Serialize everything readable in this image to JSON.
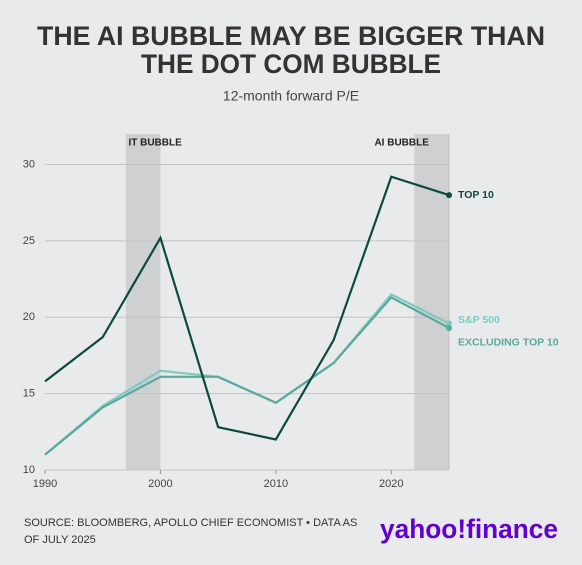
{
  "chart_data": {
    "type": "line",
    "title_lines": [
      "THE AI BUBBLE MAY BE BIGGER THAN",
      "THE DOT COM BUBBLE"
    ],
    "subtitle": "12-month forward P/E",
    "x": [
      1990,
      1995,
      2000,
      2005,
      2010,
      2015,
      2020,
      2025
    ],
    "series": [
      {
        "name": "TOP 10",
        "color": "#0d4a3e",
        "values": [
          15.8,
          18.7,
          25.2,
          12.8,
          12.0,
          18.5,
          29.2,
          28.0
        ]
      },
      {
        "name": "S&P 500",
        "color": "#80cbbf",
        "values": [
          11.0,
          14.2,
          16.5,
          16.1,
          14.4,
          17.0,
          21.5,
          19.6
        ]
      },
      {
        "name": "EXCLUDING TOP 10",
        "color": "#5aa99c",
        "values": [
          11.0,
          14.1,
          16.1,
          16.1,
          14.4,
          17.0,
          21.3,
          19.3
        ]
      }
    ],
    "shaded_regions": [
      {
        "label": "IT BUBBLE",
        "range": [
          1997,
          2000
        ]
      },
      {
        "label": "AI BUBBLE",
        "range": [
          2022,
          2025
        ]
      }
    ],
    "xlim": [
      1990,
      2025
    ],
    "xticks": [
      1990,
      2000,
      2010,
      2020
    ],
    "ylim": [
      10,
      32
    ],
    "yticks": [
      10,
      15,
      20,
      25,
      30
    ],
    "grid": true,
    "source_lines": [
      "SOURCE: BLOOMBERG, APOLLO CHIEF ECONOMIST • DATA AS",
      "OF JULY 2025"
    ],
    "logo": "yahoo!finance"
  }
}
